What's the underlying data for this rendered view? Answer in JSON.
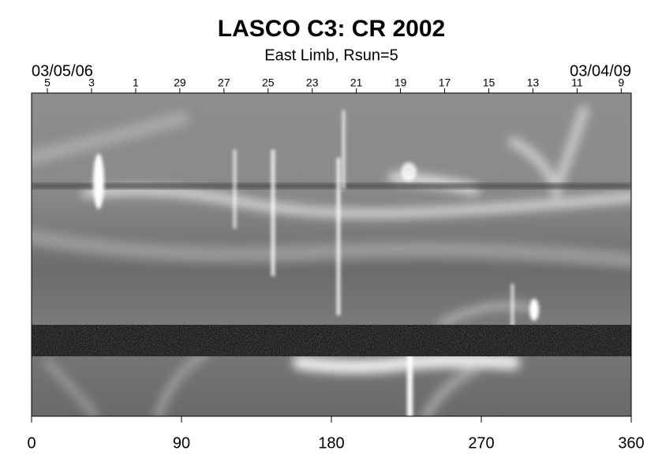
{
  "chart_data": {
    "type": "image",
    "title": "LASCO C3: CR 2002",
    "subtitle": "East Limb, Rsun=5",
    "xlim": [
      0,
      360
    ],
    "xticks": [
      0,
      90,
      180,
      270,
      360
    ],
    "top_axis": {
      "start_label": "03/05/06",
      "end_label": "03/04/09",
      "ticks": [
        {
          "value": 9.5,
          "label": "5"
        },
        {
          "value": 36,
          "label": "3"
        },
        {
          "value": 62.5,
          "label": "1"
        },
        {
          "value": 89,
          "label": "29"
        },
        {
          "value": 115.5,
          "label": "27"
        },
        {
          "value": 142,
          "label": "25"
        },
        {
          "value": 168.5,
          "label": "23"
        },
        {
          "value": 195,
          "label": "21"
        },
        {
          "value": 221.5,
          "label": "19"
        },
        {
          "value": 248,
          "label": "17"
        },
        {
          "value": 274.5,
          "label": "15"
        },
        {
          "value": 301,
          "label": "13"
        },
        {
          "value": 327.5,
          "label": "11"
        },
        {
          "value": 354,
          "label": "9"
        }
      ]
    }
  }
}
